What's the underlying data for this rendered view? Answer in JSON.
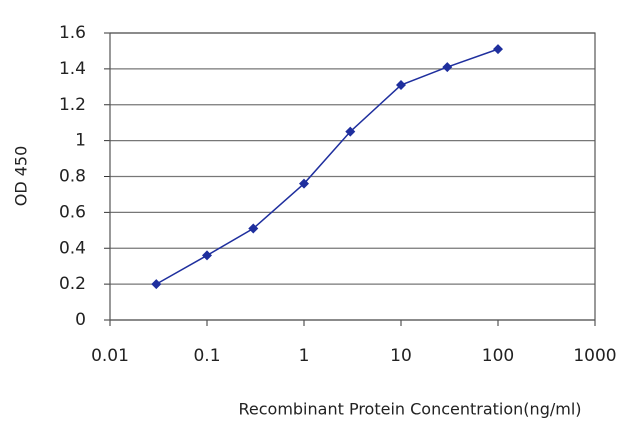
{
  "chart_data": {
    "type": "line",
    "x_label": "Recombinant Protein Concentration(ng/ml)",
    "y_label": "OD 450",
    "x": [
      0.03,
      0.1,
      0.3,
      1,
      3,
      10,
      30,
      100
    ],
    "series": [
      {
        "color": "#1f2f9e",
        "values": [
          0.2,
          0.36,
          0.51,
          0.76,
          1.05,
          1.31,
          1.41,
          1.51
        ]
      }
    ],
    "xscale": "log",
    "xlim": [
      0.01,
      1000
    ],
    "xticks": [
      0.01,
      0.1,
      1,
      10,
      100,
      1000
    ],
    "ylim": [
      0,
      1.6
    ],
    "yticks": [
      0,
      0.2,
      0.4,
      0.6,
      0.8,
      1,
      1.2,
      1.4,
      1.6
    ],
    "grid": true
  }
}
